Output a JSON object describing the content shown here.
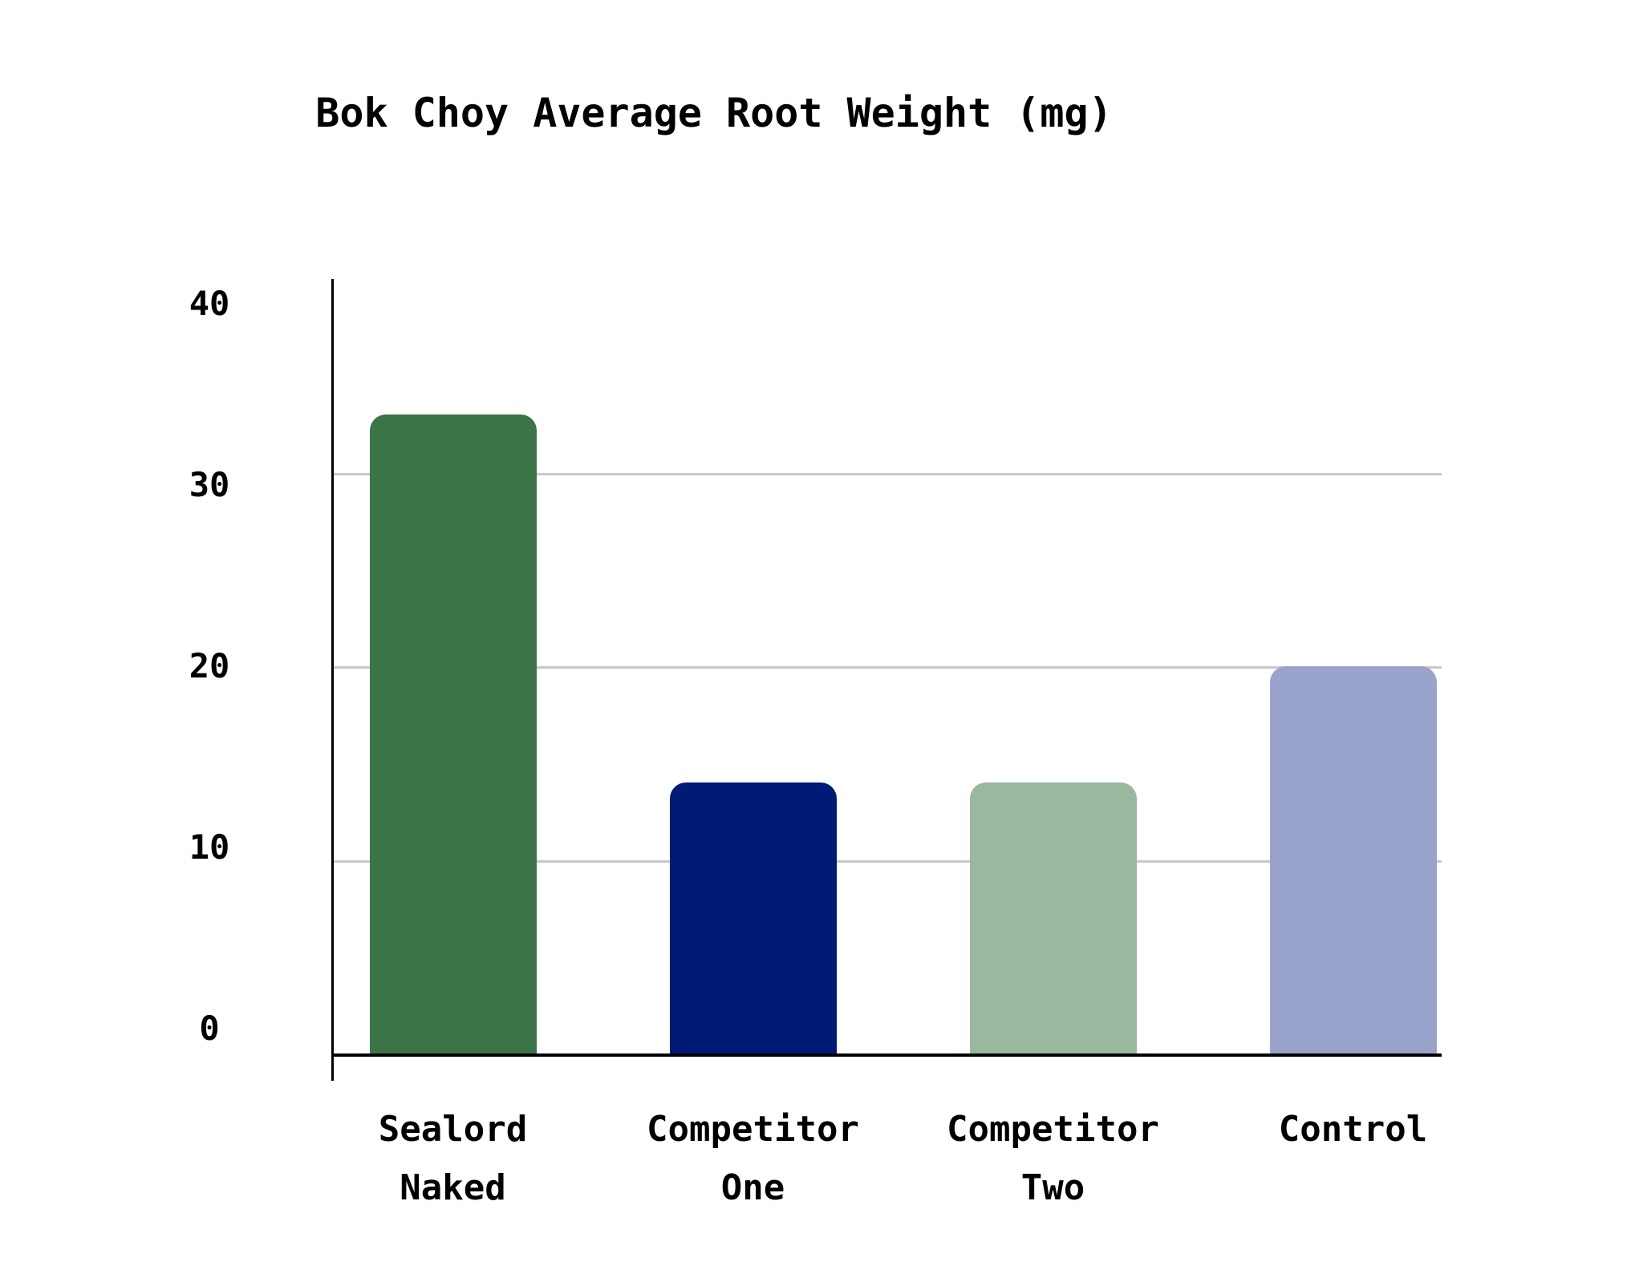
{
  "page": {
    "background_color": "#ffffff",
    "text_color": "#000000"
  },
  "chart_data": {
    "type": "bar",
    "title": "Bok Choy Average Root Weight (mg)",
    "categories": [
      "Sealord Naked",
      "Competitor One",
      "Competitor Two",
      "Control"
    ],
    "category_lines": [
      [
        "Sealord",
        "Naked"
      ],
      [
        "Competitor",
        "One"
      ],
      [
        "Competitor",
        "Two"
      ],
      [
        "Control"
      ]
    ],
    "values": [
      33,
      14,
      14,
      20
    ],
    "bar_colors": [
      "#3a7447",
      "#001b75",
      "#9ab7a0",
      "#99a3cb"
    ],
    "xlabel": "",
    "ylabel": "",
    "ylim": [
      0,
      40
    ],
    "yticks": [
      0,
      10,
      20,
      30,
      40
    ],
    "gridlines": [
      10,
      20,
      30
    ],
    "grid_on": true,
    "grid_color": "#c8c8c8",
    "axis_color": "#000000",
    "legend": "none"
  }
}
